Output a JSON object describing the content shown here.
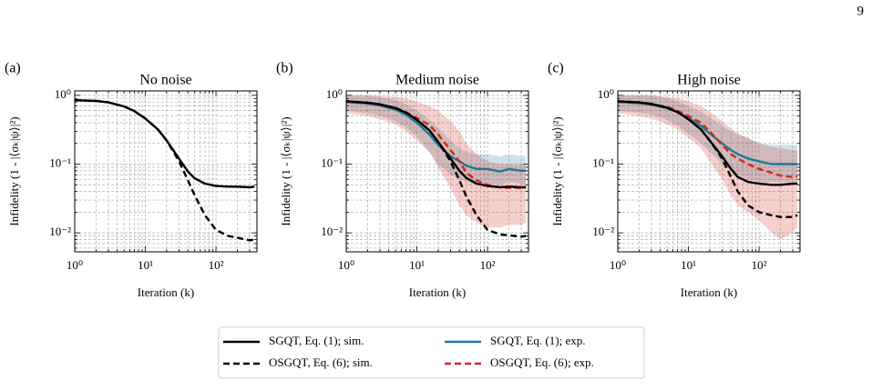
{
  "page_number": "9",
  "chart_data": [
    {
      "type": "line",
      "panel_label": "(a)",
      "title": "No noise",
      "xlabel": "Iteration (k)",
      "ylabel": "Infidelity (1 - |⟨σₖ|ψ⟩|²)",
      "xscale": "log",
      "yscale": "log",
      "grid": true,
      "xlim": [
        1,
        380
      ],
      "ylim": [
        0.0053,
        1.16
      ],
      "xticks": [
        {
          "value": 1,
          "label": "10⁰"
        },
        {
          "value": 10,
          "label": "10¹"
        },
        {
          "value": 100,
          "label": "10²"
        }
      ],
      "yticks": [
        {
          "value": 0.01,
          "label": "10⁻²"
        },
        {
          "value": 0.1,
          "label": "10⁻¹"
        },
        {
          "value": 1,
          "label": "10⁰"
        }
      ],
      "xminor": [
        2,
        3,
        4,
        5,
        6,
        7,
        8,
        9,
        20,
        30,
        40,
        50,
        60,
        70,
        80,
        90,
        200,
        300
      ],
      "yminor": [
        0.006,
        0.007,
        0.008,
        0.009,
        0.02,
        0.03,
        0.04,
        0.05,
        0.06,
        0.07,
        0.08,
        0.09,
        0.2,
        0.3,
        0.4,
        0.5,
        0.6,
        0.7,
        0.8,
        0.9
      ],
      "x": [
        1,
        2,
        3,
        5,
        7,
        10,
        15,
        20,
        30,
        40,
        50,
        70,
        100,
        150,
        200,
        300,
        350
      ],
      "series": [
        {
          "name": "SGQT, Eq. (1); sim.",
          "color": "#000000",
          "linestyle": "solid",
          "values": [
            0.85,
            0.83,
            0.79,
            0.69,
            0.59,
            0.46,
            0.32,
            0.22,
            0.12,
            0.078,
            0.062,
            0.052,
            0.048,
            0.047,
            0.047,
            0.046,
            0.047
          ]
        },
        {
          "name": "OSGQT, Eq. (6); sim.",
          "color": "#000000",
          "linestyle": "dashed",
          "values": [
            0.85,
            0.83,
            0.79,
            0.69,
            0.59,
            0.46,
            0.32,
            0.22,
            0.11,
            0.058,
            0.035,
            0.018,
            0.011,
            0.009,
            0.0085,
            0.0078,
            0.008
          ]
        }
      ]
    },
    {
      "type": "line",
      "panel_label": "(b)",
      "title": "Medium noise",
      "xlabel": "Iteration (k)",
      "ylabel": "Infidelity (1 - |⟨σₖ|ψ⟩|²)",
      "xscale": "log",
      "yscale": "log",
      "grid": true,
      "xlim": [
        1,
        380
      ],
      "ylim": [
        0.0053,
        1.16
      ],
      "xticks": [
        {
          "value": 1,
          "label": "10⁰"
        },
        {
          "value": 10,
          "label": "10¹"
        },
        {
          "value": 100,
          "label": "10²"
        }
      ],
      "yticks": [
        {
          "value": 0.01,
          "label": "10⁻²"
        },
        {
          "value": 0.1,
          "label": "10⁻¹"
        },
        {
          "value": 1,
          "label": "10⁰"
        }
      ],
      "xminor": [
        2,
        3,
        4,
        5,
        6,
        7,
        8,
        9,
        20,
        30,
        40,
        50,
        60,
        70,
        80,
        90,
        200,
        300
      ],
      "yminor": [
        0.006,
        0.007,
        0.008,
        0.009,
        0.02,
        0.03,
        0.04,
        0.05,
        0.06,
        0.07,
        0.08,
        0.09,
        0.2,
        0.3,
        0.4,
        0.5,
        0.6,
        0.7,
        0.8,
        0.9
      ],
      "x": [
        1,
        2,
        3,
        5,
        7,
        10,
        15,
        20,
        30,
        40,
        50,
        70,
        100,
        150,
        200,
        300,
        350
      ],
      "series": [
        {
          "name": "SGQT, Eq. (1); sim.",
          "color": "#000000",
          "linestyle": "solid",
          "values": [
            0.82,
            0.78,
            0.74,
            0.65,
            0.56,
            0.44,
            0.31,
            0.21,
            0.12,
            0.08,
            0.063,
            0.052,
            0.048,
            0.046,
            0.047,
            0.046,
            0.046
          ]
        },
        {
          "name": "OSGQT, Eq. (6); sim.",
          "color": "#000000",
          "linestyle": "dashed",
          "values": [
            0.82,
            0.78,
            0.74,
            0.65,
            0.56,
            0.44,
            0.31,
            0.21,
            0.11,
            0.058,
            0.034,
            0.018,
            0.011,
            0.0095,
            0.0092,
            0.0088,
            0.009
          ]
        },
        {
          "name": "SGQT, Eq. (1); exp.",
          "color": "#1f7a99",
          "linestyle": "solid",
          "values": [
            0.8,
            0.76,
            0.71,
            0.62,
            0.52,
            0.4,
            0.27,
            0.19,
            0.13,
            0.11,
            0.095,
            0.085,
            0.085,
            0.078,
            0.085,
            0.08,
            0.08
          ],
          "lower": [
            0.6,
            0.55,
            0.5,
            0.42,
            0.34,
            0.25,
            0.15,
            0.1,
            0.07,
            0.06,
            0.055,
            0.05,
            0.052,
            0.05,
            0.055,
            0.052,
            0.05
          ],
          "upper": [
            1.0,
            1.0,
            0.95,
            0.85,
            0.75,
            0.6,
            0.45,
            0.33,
            0.22,
            0.17,
            0.15,
            0.14,
            0.14,
            0.13,
            0.14,
            0.13,
            0.13
          ]
        },
        {
          "name": "OSGQT, Eq. (6); exp.",
          "color": "#d62718",
          "linestyle": "dashed",
          "values": [
            0.8,
            0.78,
            0.73,
            0.66,
            0.57,
            0.47,
            0.37,
            0.27,
            0.16,
            0.11,
            0.075,
            0.058,
            0.05,
            0.046,
            0.045,
            0.045,
            0.046
          ],
          "lower": [
            0.55,
            0.5,
            0.45,
            0.38,
            0.3,
            0.22,
            0.15,
            0.09,
            0.045,
            0.025,
            0.018,
            0.014,
            0.012,
            0.012,
            0.013,
            0.013,
            0.014
          ],
          "upper": [
            1.0,
            1.0,
            0.98,
            0.95,
            0.9,
            0.8,
            0.7,
            0.6,
            0.42,
            0.3,
            0.2,
            0.14,
            0.11,
            0.1,
            0.1,
            0.1,
            0.1
          ]
        }
      ]
    },
    {
      "type": "line",
      "panel_label": "(c)",
      "title": "High noise",
      "xlabel": "Iteration (k)",
      "ylabel": "Infidelity (1 - |⟨σₖ|ψ⟩|²)",
      "xscale": "log",
      "yscale": "log",
      "grid": true,
      "xlim": [
        1,
        380
      ],
      "ylim": [
        0.0053,
        1.16
      ],
      "xticks": [
        {
          "value": 1,
          "label": "10⁰"
        },
        {
          "value": 10,
          "label": "10¹"
        },
        {
          "value": 100,
          "label": "10²"
        }
      ],
      "yticks": [
        {
          "value": 0.01,
          "label": "10⁻²"
        },
        {
          "value": 0.1,
          "label": "10⁻¹"
        },
        {
          "value": 1,
          "label": "10⁰"
        }
      ],
      "xminor": [
        2,
        3,
        4,
        5,
        6,
        7,
        8,
        9,
        20,
        30,
        40,
        50,
        60,
        70,
        80,
        90,
        200,
        300
      ],
      "yminor": [
        0.006,
        0.007,
        0.008,
        0.009,
        0.02,
        0.03,
        0.04,
        0.05,
        0.06,
        0.07,
        0.08,
        0.09,
        0.2,
        0.3,
        0.4,
        0.5,
        0.6,
        0.7,
        0.8,
        0.9
      ],
      "x": [
        1,
        2,
        3,
        5,
        7,
        10,
        15,
        20,
        30,
        40,
        50,
        70,
        100,
        150,
        200,
        300,
        350
      ],
      "series": [
        {
          "name": "SGQT, Eq. (1); sim.",
          "color": "#000000",
          "linestyle": "solid",
          "values": [
            0.82,
            0.79,
            0.75,
            0.66,
            0.57,
            0.45,
            0.32,
            0.22,
            0.13,
            0.085,
            0.065,
            0.055,
            0.052,
            0.05,
            0.05,
            0.052,
            0.052
          ]
        },
        {
          "name": "OSGQT, Eq. (6); sim.",
          "color": "#000000",
          "linestyle": "dashed",
          "values": [
            0.82,
            0.79,
            0.75,
            0.66,
            0.57,
            0.45,
            0.32,
            0.22,
            0.12,
            0.065,
            0.04,
            0.025,
            0.02,
            0.018,
            0.017,
            0.017,
            0.018
          ]
        },
        {
          "name": "SGQT, Eq. (1); exp.",
          "color": "#1f7a99",
          "linestyle": "solid",
          "values": [
            0.8,
            0.77,
            0.73,
            0.65,
            0.57,
            0.47,
            0.36,
            0.28,
            0.2,
            0.16,
            0.14,
            0.12,
            0.11,
            0.1,
            0.1,
            0.1,
            0.1
          ],
          "lower": [
            0.6,
            0.56,
            0.52,
            0.44,
            0.36,
            0.28,
            0.2,
            0.15,
            0.1,
            0.08,
            0.07,
            0.06,
            0.055,
            0.055,
            0.055,
            0.055,
            0.055
          ],
          "upper": [
            1.0,
            1.0,
            1.0,
            0.9,
            0.82,
            0.7,
            0.58,
            0.48,
            0.36,
            0.3,
            0.27,
            0.24,
            0.2,
            0.19,
            0.19,
            0.19,
            0.19
          ]
        },
        {
          "name": "OSGQT, Eq. (6); exp.",
          "color": "#d62718",
          "linestyle": "dashed",
          "values": [
            0.8,
            0.78,
            0.74,
            0.68,
            0.6,
            0.5,
            0.4,
            0.3,
            0.19,
            0.14,
            0.12,
            0.1,
            0.085,
            0.075,
            0.068,
            0.065,
            0.066
          ],
          "lower": [
            0.55,
            0.5,
            0.46,
            0.38,
            0.32,
            0.24,
            0.17,
            0.11,
            0.06,
            0.035,
            0.025,
            0.02,
            0.015,
            0.01,
            0.008,
            0.01,
            0.012
          ],
          "upper": [
            1.0,
            1.0,
            1.0,
            0.95,
            0.9,
            0.82,
            0.7,
            0.58,
            0.42,
            0.33,
            0.28,
            0.24,
            0.2,
            0.18,
            0.17,
            0.16,
            0.16
          ]
        }
      ]
    }
  ]
}
